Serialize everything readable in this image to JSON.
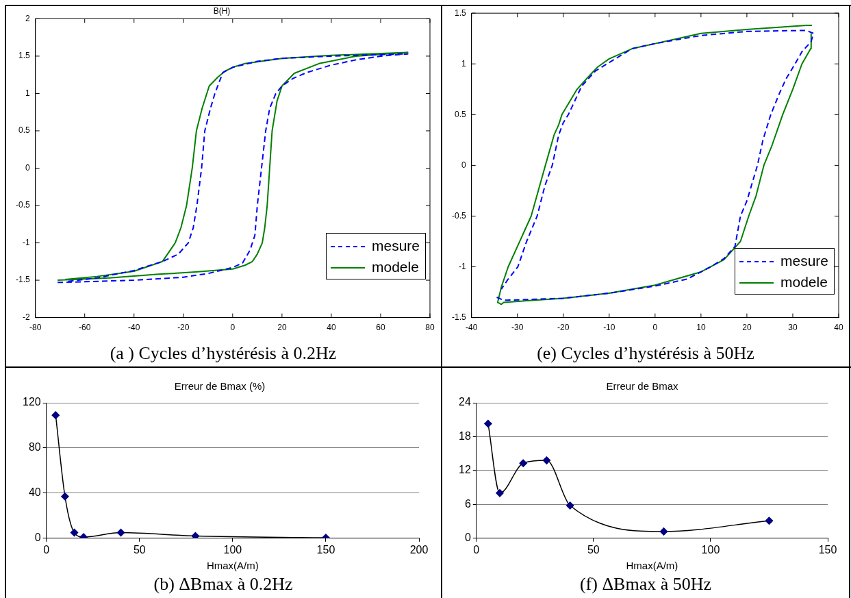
{
  "chart_data": [
    {
      "type": "line",
      "title": "B(H)",
      "annotations": [
        "(a ) Cycles d’hystérésis à 0.2Hz"
      ],
      "xlim": [
        -80,
        80
      ],
      "xticks": [
        -80,
        -60,
        -40,
        -20,
        0,
        20,
        40,
        60,
        80
      ],
      "ylim": [
        -2,
        2
      ],
      "yticks": [
        -2,
        -1.5,
        -1,
        -0.5,
        0,
        0.5,
        1,
        1.5,
        2
      ],
      "grid": false,
      "legend": "bottom right",
      "series": [
        {
          "name": "mesure",
          "color": "#0000ff",
          "line_style": "dashed",
          "x": [
            -71,
            -60,
            -40,
            -20,
            -10,
            0,
            4,
            7,
            9,
            10,
            11.7,
            13.4,
            15,
            17.5,
            20,
            24.4,
            30,
            40,
            50,
            60,
            71,
            60,
            40,
            20,
            10,
            0,
            -4,
            -7.2,
            -9,
            -11.3,
            -12.6,
            -14.5,
            -16,
            -18,
            -22,
            -28.5,
            -40,
            -55,
            -68
          ],
          "values": [
            -1.53,
            -1.52,
            -1.5,
            -1.46,
            -1.41,
            -1.33,
            -1.27,
            -1.1,
            -0.9,
            -0.5,
            0,
            0.5,
            0.8,
            1,
            1.1,
            1.2,
            1.28,
            1.38,
            1.45,
            1.5,
            1.53,
            1.52,
            1.5,
            1.47,
            1.43,
            1.35,
            1.28,
            1,
            0.8,
            0.5,
            0,
            -0.5,
            -0.8,
            -1,
            -1.15,
            -1.25,
            -1.37,
            -1.47,
            -1.52
          ]
        },
        {
          "name": "modele",
          "color": "#008000",
          "line_style": "solid",
          "x": [
            -71,
            -50,
            -30,
            -15,
            0,
            5,
            8,
            10,
            12,
            13,
            14,
            15,
            16,
            18,
            20,
            25,
            35,
            50,
            71,
            40,
            20,
            5,
            0,
            -3,
            -6,
            -9.5,
            -12.4,
            -14.7,
            -16.4,
            -18.7,
            -21,
            -23.3,
            -28.5,
            -40,
            -55,
            -68
          ],
          "values": [
            -1.5,
            -1.47,
            -1.42,
            -1.39,
            -1.35,
            -1.3,
            -1.25,
            -1.15,
            -1,
            -0.8,
            -0.5,
            0,
            0.5,
            0.9,
            1.1,
            1.27,
            1.4,
            1.5,
            1.55,
            1.51,
            1.47,
            1.4,
            1.35,
            1.3,
            1.22,
            1.1,
            0.8,
            0.5,
            0,
            -0.5,
            -0.8,
            -1,
            -1.25,
            -1.38,
            -1.45,
            -1.49
          ]
        }
      ]
    },
    {
      "type": "line",
      "annotations": [
        "(e) Cycles d’hystérésis à 50Hz"
      ],
      "xlim": [
        -40,
        40
      ],
      "xticks": [
        -40,
        -30,
        -20,
        -10,
        0,
        10,
        20,
        30,
        40
      ],
      "ylim": [
        -1.5,
        1.5
      ],
      "yticks": [
        -1.5,
        -1,
        -0.5,
        0,
        0.5,
        1,
        1.5
      ],
      "grid": false,
      "legend": "bottom right",
      "series": [
        {
          "name": "mesure",
          "color": "#0000ff",
          "line_style": "dashed",
          "x": [
            -34.5,
            -33,
            -20,
            -10,
            0,
            7,
            12.1,
            15,
            17.4,
            18.6,
            20,
            22.3,
            23.5,
            25.2,
            27,
            28.5,
            30.5,
            32,
            34,
            34.5,
            33,
            20,
            10,
            0,
            -5,
            -10.5,
            -13,
            -16,
            -18.9,
            -20,
            -21,
            -22.4,
            -24,
            -25.7,
            -28,
            -29.9,
            -32,
            -33.5
          ],
          "values": [
            -1.3,
            -1.33,
            -1.31,
            -1.26,
            -1.19,
            -1.12,
            -1,
            -0.92,
            -0.8,
            -0.5,
            -0.35,
            0,
            0.25,
            0.5,
            0.7,
            0.85,
            1,
            1.12,
            1.22,
            1.3,
            1.33,
            1.32,
            1.28,
            1.2,
            1.15,
            1,
            0.93,
            0.78,
            0.5,
            0.42,
            0.3,
            0,
            -0.2,
            -0.5,
            -0.75,
            -1,
            -1.12,
            -1.22
          ]
        },
        {
          "name": "modele",
          "color": "#008000",
          "line_style": "solid",
          "x": [
            34.2,
            33,
            20,
            10,
            0,
            -5,
            -10,
            -12.5,
            -15,
            -17,
            -20.3,
            -21,
            -22,
            -23.9,
            -27,
            -30,
            -32,
            -33.5,
            -34.3,
            -33.5,
            -33,
            -20,
            -10,
            0,
            10,
            15,
            18.6,
            20.4,
            22,
            23.7,
            25.5,
            27.8,
            30,
            32,
            33.9,
            34
          ],
          "values": [
            1.38,
            1.38,
            1.34,
            1.3,
            1.2,
            1.15,
            1.05,
            0.97,
            0.85,
            0.75,
            0.5,
            0.4,
            0.3,
            0,
            -0.5,
            -0.8,
            -1,
            -1.2,
            -1.35,
            -1.37,
            -1.35,
            -1.31,
            -1.26,
            -1.18,
            -1.05,
            -0.93,
            -0.75,
            -0.5,
            -0.3,
            0,
            0.2,
            0.5,
            0.75,
            1,
            1.15,
            1.3
          ]
        }
      ]
    },
    {
      "type": "line",
      "title": "Erreur de Bmax (%)",
      "xlabel": "Hmax(A/m)",
      "annotations": [
        "(b) ΔBmax à 0.2Hz"
      ],
      "xlim": [
        0,
        200
      ],
      "xticks": [
        0,
        50,
        100,
        150,
        200
      ],
      "ylim": [
        0,
        120
      ],
      "yticks": [
        0,
        40,
        80,
        120
      ],
      "grid": "y",
      "marker": "diamond",
      "series": [
        {
          "color": "#000000",
          "colors": [
            "#000080",
            "#000080",
            "#000080",
            "#000080",
            "#000080",
            "#000080",
            "#000080"
          ],
          "x": [
            5,
            10,
            15,
            20,
            40,
            80,
            150
          ],
          "values": [
            109,
            37,
            5,
            1,
            5,
            2,
            0.5
          ]
        }
      ]
    },
    {
      "type": "line",
      "title": "Erreur de Bmax",
      "xlabel": "Hmax(A/m)",
      "annotations": [
        "(f) ΔBmax à 50Hz"
      ],
      "xlim": [
        0,
        150
      ],
      "xticks": [
        0,
        50,
        100,
        150
      ],
      "ylim": [
        0,
        24
      ],
      "yticks": [
        0,
        6,
        12,
        18,
        24
      ],
      "grid": "y",
      "marker": "diamond",
      "series": [
        {
          "color": "#000000",
          "colors": [
            "#000080",
            "#000080",
            "#000080",
            "#000080",
            "#000080",
            "#000080",
            "#000080"
          ],
          "x": [
            5,
            10,
            20,
            30,
            40,
            80,
            125
          ],
          "values": [
            20.3,
            8,
            13.3,
            13.8,
            5.8,
            1.2,
            3.1
          ]
        }
      ]
    }
  ]
}
